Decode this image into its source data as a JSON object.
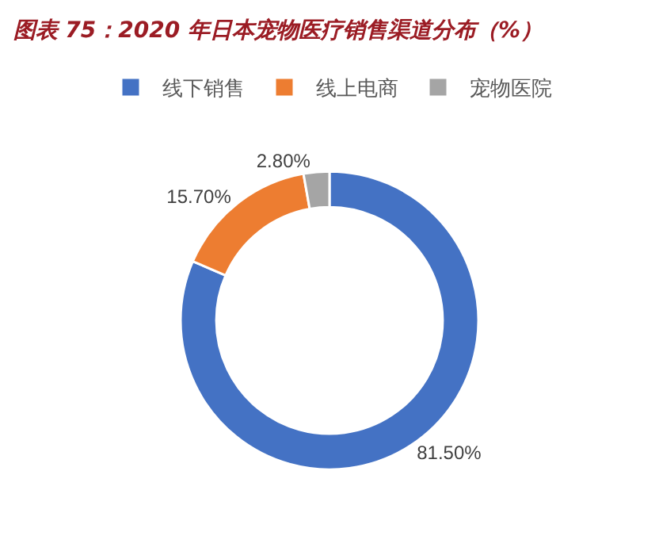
{
  "chart_data": {
    "type": "donut",
    "title": "图表 75：2020 年日本宠物医疗销售渠道分布（%）",
    "categories": [
      "线下销售",
      "线上电商",
      "宠物医院"
    ],
    "values": [
      81.5,
      15.7,
      2.8
    ],
    "colors": [
      "#4472c4",
      "#ed7d31",
      "#a5a5a5"
    ],
    "value_labels": [
      "81.50%",
      "15.70%",
      "2.80%"
    ],
    "legend": "top"
  }
}
